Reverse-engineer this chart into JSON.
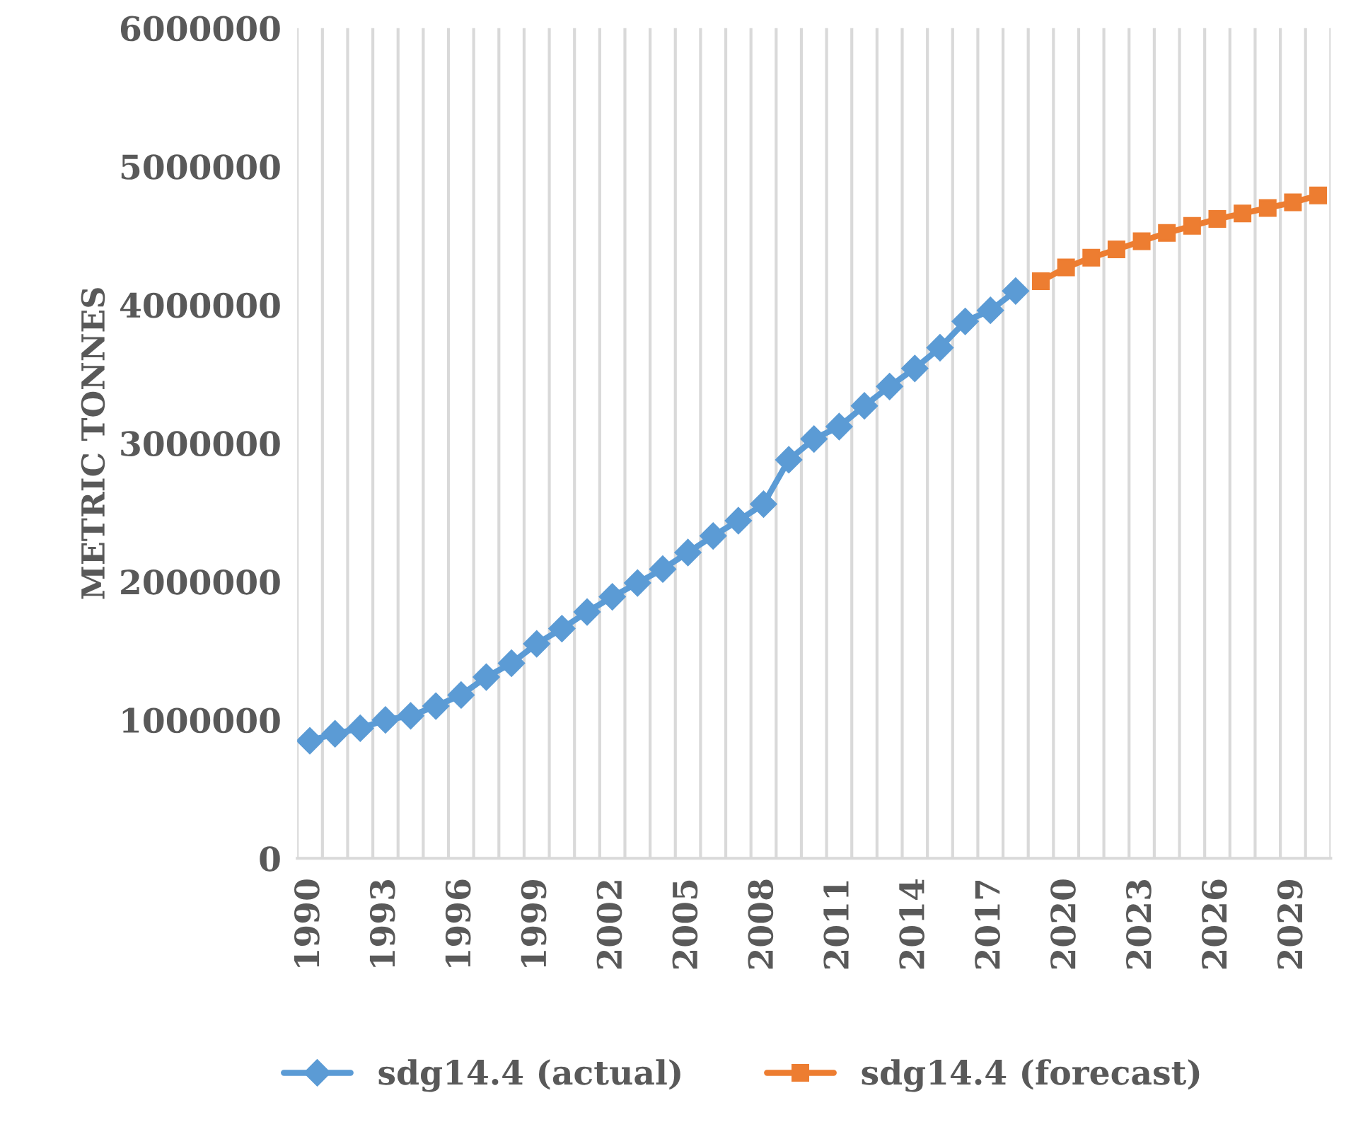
{
  "chart_data": {
    "type": "line",
    "ylabel": "METRIC TONNES",
    "categories": [
      "1990",
      null,
      null,
      "1993",
      null,
      null,
      "1996",
      null,
      null,
      "1999",
      null,
      null,
      "2002",
      null,
      null,
      "2005",
      null,
      null,
      "2008",
      null,
      null,
      "2011",
      null,
      null,
      "2014",
      null,
      null,
      "2017",
      null,
      null,
      "2020",
      null,
      null,
      "2023",
      null,
      null,
      "2026",
      null,
      null,
      "2029",
      null
    ],
    "series": [
      {
        "name": "sdg14.4 (actual)",
        "color": "#5b9bd5",
        "marker": "diamond",
        "values": [
          850000,
          900000,
          940000,
          1000000,
          1030000,
          1100000,
          1180000,
          1310000,
          1410000,
          1550000,
          1660000,
          1780000,
          1890000,
          1990000,
          2090000,
          2210000,
          2330000,
          2440000,
          2560000,
          2880000,
          3030000,
          3120000,
          3270000,
          3410000,
          3540000,
          3690000,
          3880000,
          3960000,
          4100000,
          null,
          null,
          null,
          null,
          null,
          null,
          null,
          null,
          null,
          null,
          null,
          null
        ]
      },
      {
        "name": "sdg14.4 (forecast)",
        "color": "#ed7d31",
        "marker": "square",
        "values": [
          null,
          null,
          null,
          null,
          null,
          null,
          null,
          null,
          null,
          null,
          null,
          null,
          null,
          null,
          null,
          null,
          null,
          null,
          null,
          null,
          null,
          null,
          null,
          null,
          null,
          null,
          null,
          null,
          null,
          4170000,
          4270000,
          4340000,
          4400000,
          4460000,
          4520000,
          4570000,
          4620000,
          4660000,
          4700000,
          4740000,
          4790000
        ]
      }
    ],
    "ylim": [
      0,
      6000000
    ],
    "yticks": [
      0,
      1000000,
      2000000,
      3000000,
      4000000,
      5000000,
      6000000
    ],
    "grid": "x",
    "legend": "bottom"
  }
}
